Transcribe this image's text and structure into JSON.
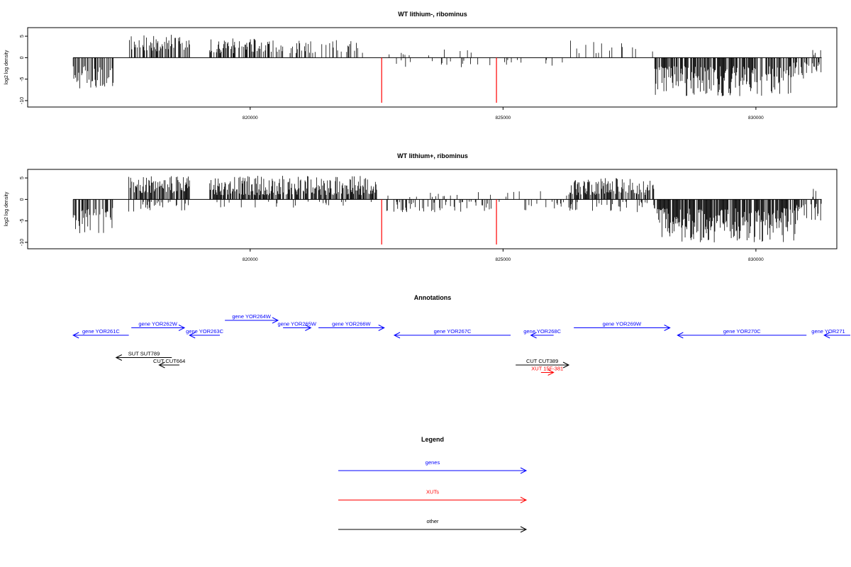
{
  "chart_data": [
    {
      "type": "bar",
      "title": "WT lithium-, ribominus",
      "xlabel": "",
      "ylabel": "log2 log density",
      "xlim": [
        815600,
        831600
      ],
      "ylim": [
        -11,
        6.5
      ],
      "x_ticks": [
        820000,
        825000,
        830000
      ],
      "y_ticks": [
        5,
        0,
        -5,
        -10
      ],
      "highlight_color": "#ff0000",
      "highlight_bars": [
        {
          "x": 822600,
          "y": -10.5
        },
        {
          "x": 824870,
          "y": -10.5
        }
      ],
      "regions": [
        {
          "from": 816500,
          "to": 817300,
          "sign": -1,
          "min": 2,
          "max": 7.5,
          "density": 0.55
        },
        {
          "from": 817600,
          "to": 818800,
          "sign": 1,
          "min": 1.5,
          "max": 5.5,
          "density": 0.55
        },
        {
          "from": 819200,
          "to": 820200,
          "sign": 1,
          "min": 1,
          "max": 4.5,
          "density": 0.5
        },
        {
          "from": 820200,
          "to": 821200,
          "sign": 1,
          "min": 1,
          "max": 4,
          "density": 0.35
        },
        {
          "from": 821200,
          "to": 822300,
          "sign": 1,
          "min": 1,
          "max": 4.5,
          "density": 0.3
        },
        {
          "from": 822700,
          "to": 824800,
          "sign": -1,
          "min": 0.5,
          "max": 2.5,
          "density": 0.12
        },
        {
          "from": 822700,
          "to": 824800,
          "sign": 1,
          "min": 0.5,
          "max": 2,
          "density": 0.04
        },
        {
          "from": 824900,
          "to": 826500,
          "sign": -1,
          "min": 0.5,
          "max": 2,
          "density": 0.05
        },
        {
          "from": 826300,
          "to": 828000,
          "sign": 1,
          "min": 1,
          "max": 4,
          "density": 0.1
        },
        {
          "from": 828000,
          "to": 830700,
          "sign": -1,
          "min": 2,
          "max": 9,
          "density": 0.7
        },
        {
          "from": 830700,
          "to": 831300,
          "sign": -1,
          "min": 1,
          "max": 5,
          "density": 0.4
        },
        {
          "from": 831100,
          "to": 831300,
          "sign": 1,
          "min": 0.5,
          "max": 2,
          "density": 0.1
        }
      ],
      "grid": false
    },
    {
      "type": "bar",
      "title": "WT lithium+, ribominus",
      "xlabel": "",
      "ylabel": "log2 log density",
      "xlim": [
        815600,
        831600
      ],
      "ylim": [
        -11,
        6.5
      ],
      "x_ticks": [
        820000,
        825000,
        830000
      ],
      "y_ticks": [
        5,
        0,
        -5,
        -10
      ],
      "highlight_color": "#ff0000",
      "highlight_bars": [
        {
          "x": 822600,
          "y": -10.5
        },
        {
          "x": 824870,
          "y": -10.5
        }
      ],
      "regions": [
        {
          "from": 816500,
          "to": 817300,
          "sign": -1,
          "min": 2,
          "max": 8,
          "density": 0.6
        },
        {
          "from": 817600,
          "to": 818800,
          "sign": 1,
          "min": 1.5,
          "max": 5.5,
          "density": 0.7
        },
        {
          "from": 817600,
          "to": 818800,
          "sign": -1,
          "min": 0.5,
          "max": 3,
          "density": 0.2
        },
        {
          "from": 819200,
          "to": 822500,
          "sign": 1,
          "min": 1,
          "max": 5.5,
          "density": 0.75
        },
        {
          "from": 819200,
          "to": 822500,
          "sign": -1,
          "min": 0.5,
          "max": 2,
          "density": 0.1
        },
        {
          "from": 822700,
          "to": 824800,
          "sign": -1,
          "min": 0.5,
          "max": 3,
          "density": 0.25
        },
        {
          "from": 822700,
          "to": 824800,
          "sign": 1,
          "min": 0.5,
          "max": 2,
          "density": 0.1
        },
        {
          "from": 824900,
          "to": 826500,
          "sign": -1,
          "min": 0.5,
          "max": 2.5,
          "density": 0.15
        },
        {
          "from": 824900,
          "to": 826500,
          "sign": 1,
          "min": 0.5,
          "max": 2,
          "density": 0.08
        },
        {
          "from": 826300,
          "to": 828000,
          "sign": 1,
          "min": 1,
          "max": 5,
          "density": 0.7
        },
        {
          "from": 826300,
          "to": 828000,
          "sign": -1,
          "min": 0.5,
          "max": 3,
          "density": 0.2
        },
        {
          "from": 828000,
          "to": 830800,
          "sign": -1,
          "min": 2,
          "max": 10,
          "density": 0.85
        },
        {
          "from": 830800,
          "to": 831300,
          "sign": -1,
          "min": 1,
          "max": 5,
          "density": 0.5
        },
        {
          "from": 831100,
          "to": 831300,
          "sign": 1,
          "min": 0.5,
          "max": 2.5,
          "density": 0.2
        }
      ],
      "grid": false
    }
  ],
  "annotations": {
    "title": "Annotations",
    "features": [
      {
        "label": "gene YOR261C",
        "category": "gene",
        "strand": "-",
        "start": 816500,
        "end": 817600,
        "row": 2
      },
      {
        "label": "gene YOR262W",
        "category": "gene",
        "strand": "+",
        "start": 817650,
        "end": 818700,
        "row": 1
      },
      {
        "label": "gene YOR263C",
        "category": "gene",
        "strand": "-",
        "start": 818800,
        "end": 819400,
        "row": 2
      },
      {
        "label": "gene YOR264W",
        "category": "gene",
        "strand": "+",
        "start": 819500,
        "end": 820550,
        "row": 0
      },
      {
        "label": "gene YOR265W",
        "category": "gene",
        "strand": "+",
        "start": 820650,
        "end": 821200,
        "row": 1
      },
      {
        "label": "gene YOR266W",
        "category": "gene",
        "strand": "+",
        "start": 821350,
        "end": 822650,
        "row": 1
      },
      {
        "label": "gene YOR267C",
        "category": "gene",
        "strand": "-",
        "start": 822850,
        "end": 825150,
        "row": 2
      },
      {
        "label": "gene YOR268C",
        "category": "gene",
        "strand": "-",
        "start": 825550,
        "end": 826000,
        "row": 2
      },
      {
        "label": "gene YOR269W",
        "category": "gene",
        "strand": "+",
        "start": 826400,
        "end": 828300,
        "row": 1
      },
      {
        "label": "gene YOR270C",
        "category": "gene",
        "strand": "-",
        "start": 828450,
        "end": 831000,
        "row": 2
      },
      {
        "label": "gene YOR271",
        "category": "gene",
        "strand": "-",
        "start": 831350,
        "end": 831999,
        "row": 2
      },
      {
        "label": "SUT SUT789",
        "category": "other",
        "strand": "-",
        "start": 817350,
        "end": 818450,
        "row": 5
      },
      {
        "label": "CUT CUT664",
        "category": "other",
        "strand": "-",
        "start": 818200,
        "end": 818600,
        "row": 6
      },
      {
        "label": "CUT CUT389",
        "category": "other",
        "strand": "+",
        "start": 825250,
        "end": 826300,
        "row": 6
      },
      {
        "label": "XUT 15F-381",
        "category": "xut",
        "strand": "+",
        "start": 825750,
        "end": 826000,
        "row": 7
      }
    ]
  },
  "legend": {
    "title": "Legend",
    "items": [
      {
        "label": "genes",
        "color": "#0000ff"
      },
      {
        "label": "XUTs",
        "color": "#ff0000"
      },
      {
        "label": "other",
        "color": "#000000"
      }
    ]
  },
  "colors": {
    "gene": "#0000ff",
    "xut": "#ff0000",
    "other": "#000000",
    "bar": "#000000",
    "zero_line": "#000000"
  }
}
